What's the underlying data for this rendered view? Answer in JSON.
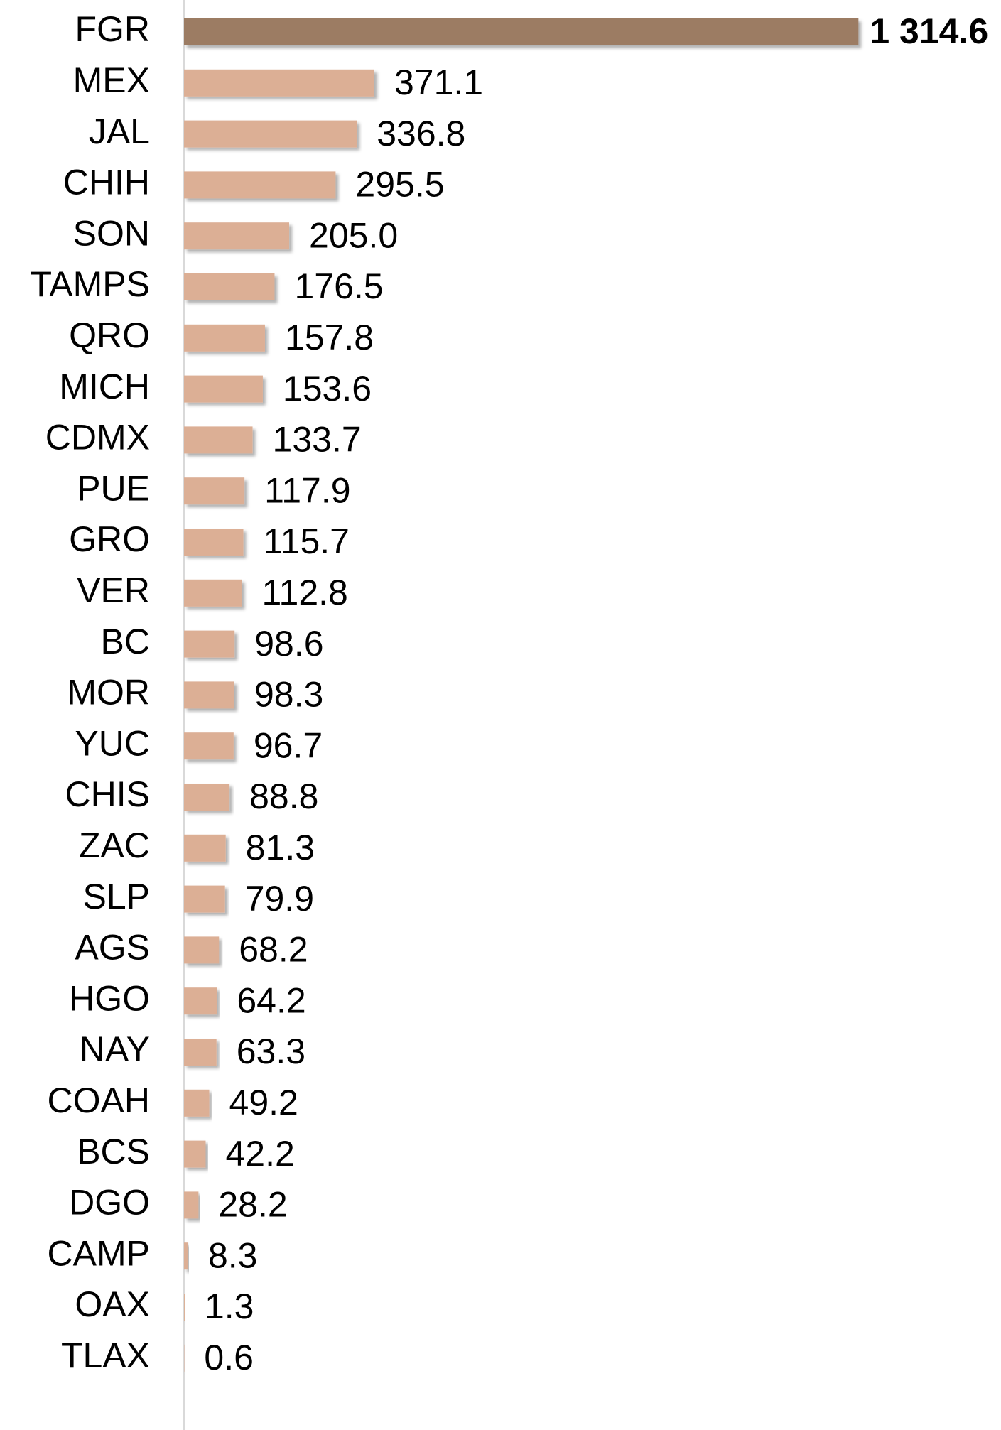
{
  "chart_data": {
    "type": "hbar",
    "categories": [
      "FGR",
      "MEX",
      "JAL",
      "CHIH",
      "SON",
      "TAMPS",
      "QRO",
      "MICH",
      "CDMX",
      "PUE",
      "GRO",
      "VER",
      "BC",
      "MOR",
      "YUC",
      "CHIS",
      "ZAC",
      "SLP",
      "AGS",
      "HGO",
      "NAY",
      "COAH",
      "BCS",
      "DGO",
      "CAMP",
      "OAX",
      "TLAX"
    ],
    "values": [
      1314.6,
      371.1,
      336.8,
      295.5,
      205.0,
      176.5,
      157.8,
      153.6,
      133.7,
      117.9,
      115.7,
      112.8,
      98.6,
      98.3,
      96.7,
      88.8,
      81.3,
      79.9,
      68.2,
      64.2,
      63.3,
      49.2,
      42.2,
      28.2,
      8.3,
      1.3,
      0.6
    ],
    "value_labels": [
      "1 314.6",
      "371.1",
      "336.8",
      "295.5",
      "205.0",
      "176.5",
      "157.8",
      "153.6",
      "133.7",
      "117.9",
      "115.7",
      "112.8",
      "98.6",
      "98.3",
      "96.7",
      "88.8",
      "81.3",
      "79.9",
      "68.2",
      "64.2",
      "63.3",
      "49.2",
      "42.2",
      "28.2",
      "8.3",
      "1.3",
      "0.6"
    ],
    "colors": [
      "#9c7b63",
      "#dcaf95",
      "#dcaf95",
      "#dcaf95",
      "#dcaf95",
      "#dcaf95",
      "#dcaf95",
      "#dcaf95",
      "#dcaf95",
      "#dcaf95",
      "#dcaf95",
      "#dcaf95",
      "#dcaf95",
      "#dcaf95",
      "#dcaf95",
      "#dcaf95",
      "#dcaf95",
      "#dcaf95",
      "#dcaf95",
      "#dcaf95",
      "#dcaf95",
      "#dcaf95",
      "#dcaf95",
      "#dcaf95",
      "#dcaf95",
      "#dcaf95",
      "#dcaf95"
    ],
    "xlim": [
      0,
      1580
    ]
  }
}
